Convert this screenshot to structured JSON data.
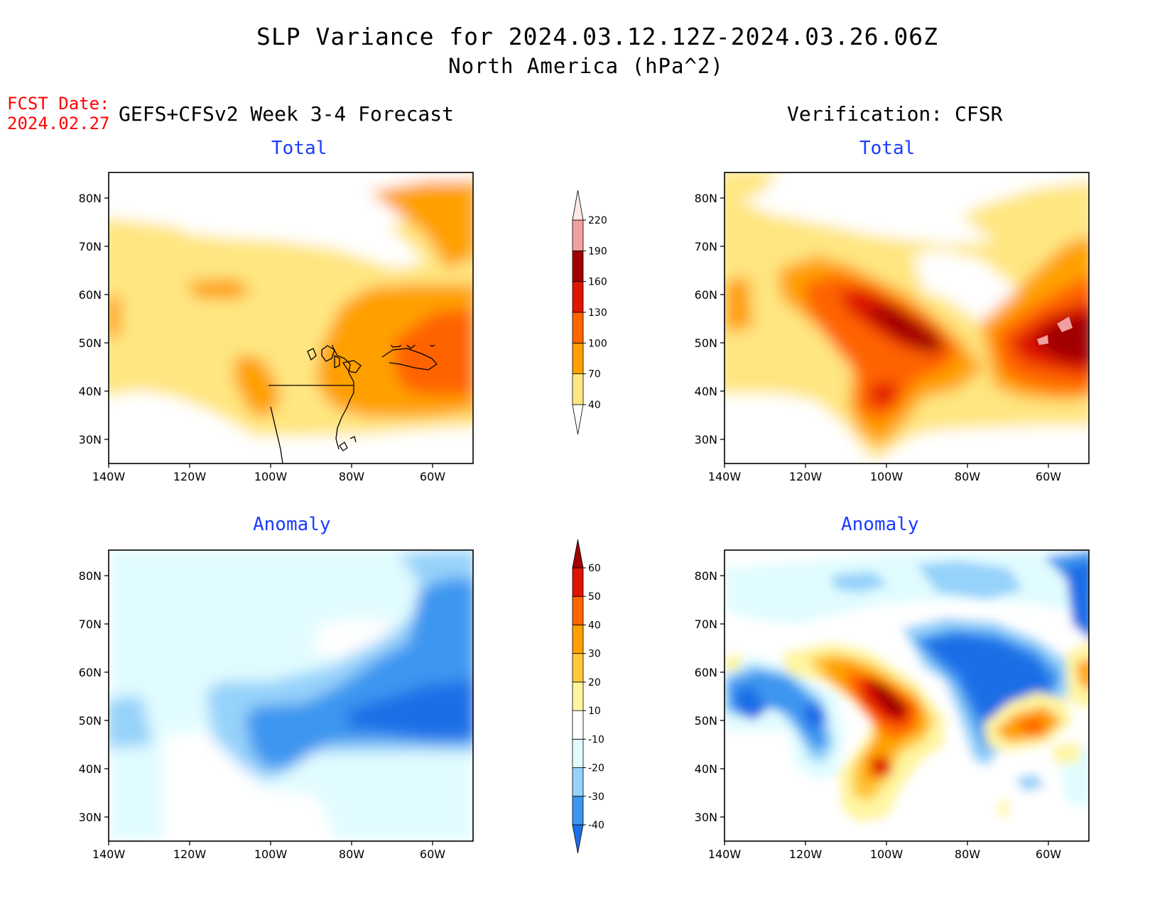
{
  "header": {
    "title": "SLP Variance for 2024.03.12.12Z-2024.03.26.06Z",
    "subtitle": "North America (hPa^2)",
    "fcst_label": "FCST Date:",
    "fcst_date": "2024.02.27",
    "left_column": "GEFS+CFSv2 Week 3-4 Forecast",
    "right_column": "Verification: CFSR"
  },
  "panels": {
    "tl": {
      "title": "Total"
    },
    "tr": {
      "title": "Total"
    },
    "bl": {
      "title": "Anomaly"
    },
    "br": {
      "title": "Anomaly"
    }
  },
  "axes": {
    "lat_labels": [
      "80N",
      "70N",
      "60N",
      "50N",
      "40N",
      "30N"
    ],
    "lon_labels": [
      "140W",
      "120W",
      "100W",
      "80W",
      "60W"
    ]
  },
  "colorbars": {
    "total": {
      "levels": [
        "40",
        "70",
        "100",
        "130",
        "160",
        "190",
        "220"
      ],
      "colors": [
        "#ffe680",
        "#ffa000",
        "#ff6400",
        "#e01400",
        "#a00000",
        "#f0a0a0",
        "#ffe8e8"
      ]
    },
    "anomaly": {
      "levels": [
        "-40",
        "-30",
        "-20",
        "-10",
        "10",
        "20",
        "30",
        "40",
        "50",
        "60"
      ],
      "colors": [
        "#1e6ee6",
        "#3c96f0",
        "#96d2fa",
        "#e1fcff",
        "#ffffff",
        "#fff5a0",
        "#ffc83c",
        "#ffa000",
        "#ff6400",
        "#e01400",
        "#a00000"
      ]
    }
  }
}
